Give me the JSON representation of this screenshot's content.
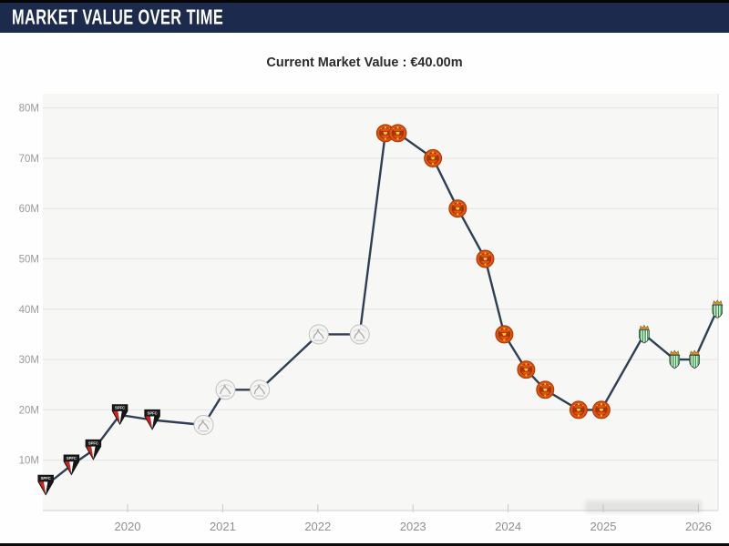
{
  "header": {
    "title": "MARKET VALUE OVER TIME"
  },
  "subtitle": "Current Market Value : €40.00m",
  "colors": {
    "header_bg": "#1c2a4d",
    "header_text": "#ffffff",
    "line": "#2e3f55",
    "grid": "#e4e4e4",
    "axis_line": "#d8d8d8",
    "tick": "#c8c8c8",
    "y_label": "#9a9a9a",
    "x_label": "#8f8f8f",
    "plot_bg": "#f7f7f6",
    "plot_right_border": "#e3e3e3"
  },
  "chart_data": {
    "type": "line",
    "title": "Current Market Value : €40.00m",
    "xlabel": "",
    "ylabel": "",
    "grid": true,
    "legend": "none",
    "x_axis": {
      "ticks": [
        2020,
        2021,
        2022,
        2023,
        2024,
        2025,
        2026
      ],
      "range": [
        2019.1,
        2026.3
      ]
    },
    "y_axis": {
      "tick_values": [
        10,
        20,
        30,
        40,
        50,
        60,
        70,
        80
      ],
      "tick_labels": [
        "10M",
        "20M",
        "30M",
        "40M",
        "50M",
        "60M",
        "70M",
        "80M"
      ],
      "range": [
        0,
        83
      ],
      "unit": "EUR million"
    },
    "clubs": {
      "sao-paulo": "São Paulo FC",
      "ajax": "AFC Ajax",
      "man-united": "Manchester United",
      "betis": "Real Betis"
    },
    "series": [
      {
        "name": "Market value (EUR m)",
        "points": [
          {
            "x": 2019.14,
            "value": 5,
            "club": "sao-paulo"
          },
          {
            "x": 2019.41,
            "value": 9,
            "club": "sao-paulo"
          },
          {
            "x": 2019.64,
            "value": 12,
            "club": "sao-paulo"
          },
          {
            "x": 2019.92,
            "value": 19,
            "club": "sao-paulo"
          },
          {
            "x": 2020.26,
            "value": 18,
            "club": "sao-paulo"
          },
          {
            "x": 2020.8,
            "value": 17,
            "club": "ajax"
          },
          {
            "x": 2021.03,
            "value": 24,
            "club": "ajax"
          },
          {
            "x": 2021.39,
            "value": 24,
            "club": "ajax"
          },
          {
            "x": 2022.01,
            "value": 35,
            "club": "ajax"
          },
          {
            "x": 2022.44,
            "value": 35,
            "club": "ajax"
          },
          {
            "x": 2022.71,
            "value": 75,
            "club": "man-united"
          },
          {
            "x": 2022.84,
            "value": 75,
            "club": "man-united"
          },
          {
            "x": 2023.21,
            "value": 70,
            "club": "man-united"
          },
          {
            "x": 2023.47,
            "value": 60,
            "club": "man-united"
          },
          {
            "x": 2023.76,
            "value": 50,
            "club": "man-united"
          },
          {
            "x": 2023.96,
            "value": 35,
            "club": "man-united"
          },
          {
            "x": 2024.19,
            "value": 28,
            "club": "man-united"
          },
          {
            "x": 2024.39,
            "value": 24,
            "club": "man-united"
          },
          {
            "x": 2024.74,
            "value": 20,
            "club": "man-united"
          },
          {
            "x": 2024.98,
            "value": 20,
            "club": "man-united"
          },
          {
            "x": 2025.43,
            "value": 35,
            "club": "betis"
          },
          {
            "x": 2025.75,
            "value": 30,
            "club": "betis"
          },
          {
            "x": 2025.96,
            "value": 30,
            "club": "betis"
          },
          {
            "x": 2026.2,
            "value": 40,
            "club": "betis"
          }
        ]
      }
    ]
  }
}
